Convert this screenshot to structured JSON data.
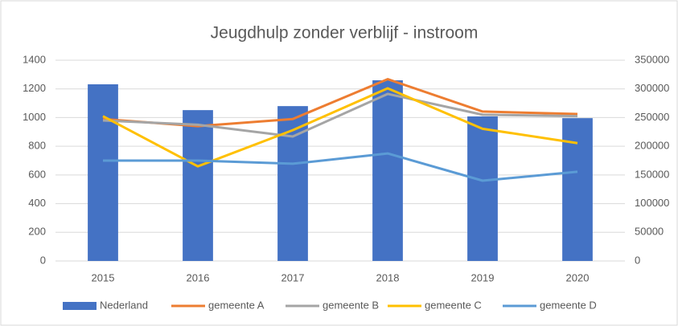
{
  "chart_data": {
    "type": "bar-line",
    "title": "Jeugdhulp zonder verblijf - instroom",
    "categories": [
      "2015",
      "2016",
      "2017",
      "2018",
      "2019",
      "2020"
    ],
    "series": [
      {
        "name": "Nederland",
        "type": "bar",
        "axis": "y2",
        "color": "#4472c4",
        "values": [
          308000,
          263000,
          270000,
          315000,
          252000,
          249000
        ]
      },
      {
        "name": "gemeente A",
        "type": "line",
        "color": "#ed7d31",
        "values": [
          990,
          940,
          990,
          1268,
          1042,
          1025
        ]
      },
      {
        "name": "gemeente B",
        "type": "line",
        "color": "#a5a5a5",
        "values": [
          980,
          950,
          868,
          1165,
          1020,
          1010
        ]
      },
      {
        "name": "gemeente C",
        "type": "line",
        "color": "#ffc000",
        "values": [
          1010,
          660,
          912,
          1204,
          922,
          822
        ]
      },
      {
        "name": "gemeente D",
        "type": "line",
        "color": "#5b9bd5",
        "values": [
          700,
          700,
          678,
          750,
          560,
          622
        ]
      }
    ],
    "ylim": [
      0,
      1400
    ],
    "yticks": [
      0,
      200,
      400,
      600,
      800,
      1000,
      1200,
      1400
    ],
    "y2lim": [
      0,
      350000
    ],
    "y2ticks": [
      0,
      50000,
      100000,
      150000,
      200000,
      250000,
      300000,
      350000
    ],
    "grid": true,
    "legend": "bottom"
  }
}
